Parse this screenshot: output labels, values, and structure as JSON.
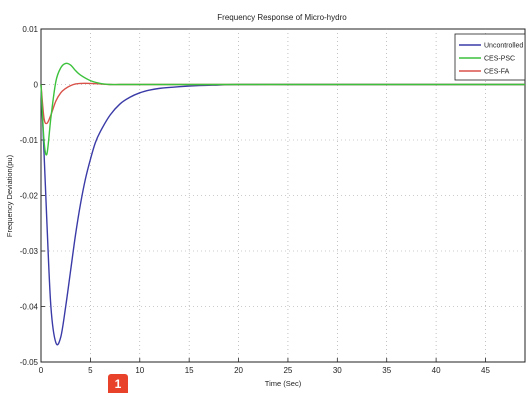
{
  "badge": {
    "label": "1",
    "color": "#e8422b"
  },
  "chart_data": {
    "type": "line",
    "title": "Frequency Response of Micro-hydro",
    "xlabel": "Time (Sec)",
    "ylabel": "Frequency Deviation(pu)",
    "xlim": [
      0,
      49
    ],
    "ylim": [
      -0.05,
      0.01
    ],
    "xticks": [
      "0",
      "5",
      "10",
      "15",
      "20",
      "25",
      "30",
      "35",
      "40",
      "45"
    ],
    "yticks": [
      "0.01",
      "0",
      "-0.01",
      "-0.02",
      "-0.03",
      "-0.04",
      "-0.05"
    ],
    "grid": true,
    "legend_position": "top-right",
    "series": [
      {
        "name": "Uncontrolled",
        "color": "#3b3ba8",
        "x": [
          0,
          0.3,
          0.6,
          1.0,
          1.5,
          2.0,
          2.5,
          3.0,
          3.5,
          4.0,
          4.5,
          5.0,
          5.5,
          6.0,
          7.0,
          8.0,
          9.0,
          10.0,
          11.0,
          12.0,
          14.0,
          16.0,
          18.0,
          20.0,
          25.0,
          30.0,
          40.0,
          49.0
        ],
        "y": [
          0,
          -0.012,
          -0.025,
          -0.04,
          -0.0465,
          -0.0455,
          -0.04,
          -0.0335,
          -0.027,
          -0.0215,
          -0.017,
          -0.0135,
          -0.0105,
          -0.0085,
          -0.0055,
          -0.0035,
          -0.0023,
          -0.0015,
          -0.001,
          -0.0007,
          -0.0004,
          -0.0002,
          -0.0001,
          0,
          0,
          0,
          0,
          0
        ]
      },
      {
        "name": "CES-PSC",
        "color": "#3cc23c",
        "x": [
          0,
          0.3,
          0.6,
          1.0,
          1.5,
          2.0,
          2.5,
          3.0,
          3.5,
          4.0,
          5.0,
          6.0,
          7.0,
          8.0,
          10.0,
          15.0,
          20.0,
          30.0,
          40.0,
          49.0
        ],
        "y": [
          0,
          -0.01,
          -0.0125,
          -0.006,
          0.0005,
          0.003,
          0.0038,
          0.0035,
          0.0025,
          0.0017,
          0.0007,
          0.0002,
          0,
          0,
          0,
          0,
          0,
          0,
          0,
          0
        ]
      },
      {
        "name": "CES-FA",
        "color": "#d9524a",
        "x": [
          0,
          0.3,
          0.6,
          1.0,
          1.5,
          2.0,
          2.5,
          3.0,
          3.5,
          4.0,
          5.0,
          6.0,
          7.0,
          8.0,
          10.0,
          15.0,
          20.0,
          30.0,
          40.0,
          49.0
        ],
        "y": [
          0,
          -0.006,
          -0.007,
          -0.0055,
          -0.003,
          -0.0015,
          -0.0007,
          -0.0002,
          0.0001,
          0.0002,
          0.0002,
          0.0001,
          0,
          0,
          0,
          0,
          0,
          0,
          0,
          0
        ]
      }
    ]
  }
}
